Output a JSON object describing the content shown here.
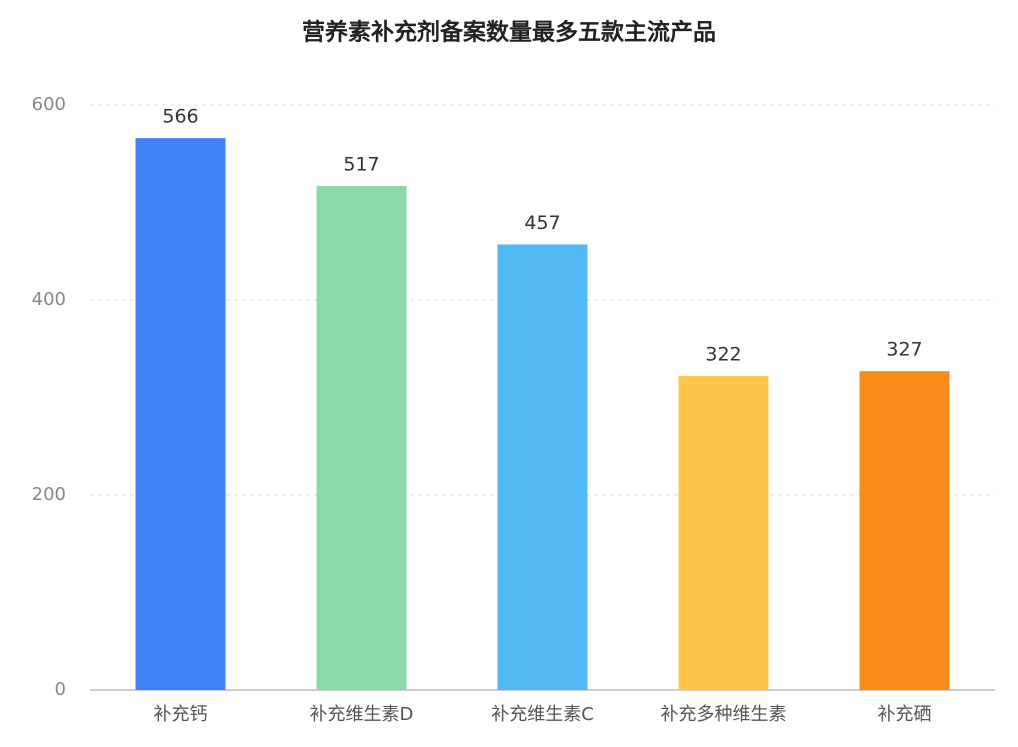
{
  "chart_data": {
    "type": "bar",
    "title": "营养素补充剂备案数量最多五款主流产品",
    "categories": [
      "补充钙",
      "补充维生素D",
      "补充维生素C",
      "补充多种维生素",
      "补充硒"
    ],
    "values": [
      566,
      517,
      457,
      322,
      327
    ],
    "colors": [
      "#4282f8",
      "#8adba8",
      "#52b9f3",
      "#fdc54b",
      "#f98b1b"
    ],
    "ylim": [
      0,
      600
    ],
    "yticks": [
      0,
      200,
      400,
      600
    ],
    "grid": true
  }
}
